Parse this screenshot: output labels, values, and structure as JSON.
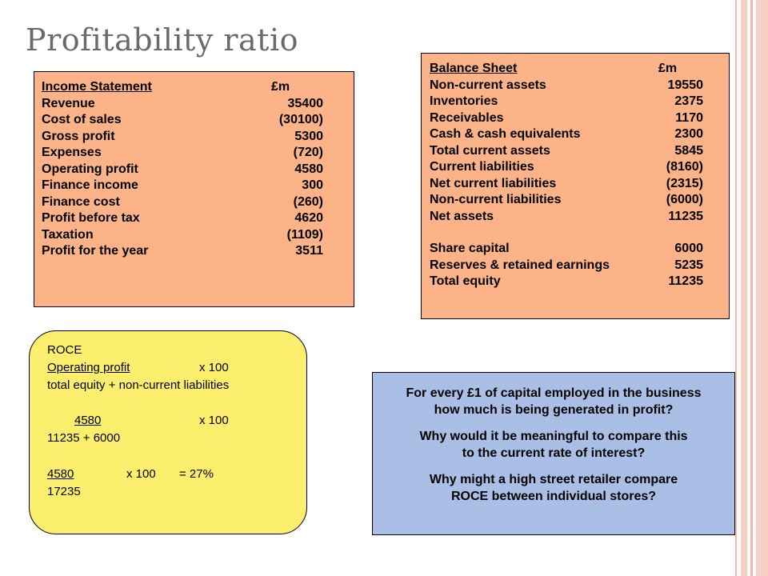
{
  "title": "Profitability ratio",
  "income_statement": {
    "header": {
      "label": "Income Statement",
      "unit": "£m"
    },
    "rows": [
      {
        "label": "Revenue",
        "value": "35400"
      },
      {
        "label": "Cost of sales",
        "value": "(30100)"
      },
      {
        "label": "Gross profit",
        "value": "5300"
      },
      {
        "label": "Expenses",
        "value": "(720)"
      },
      {
        "label": "Operating profit",
        "value": "4580"
      },
      {
        "label": "Finance income",
        "value": "300"
      },
      {
        "label": "Finance cost",
        "value": "(260)"
      },
      {
        "label": "Profit before tax",
        "value": "4620"
      },
      {
        "label": "Taxation",
        "value": "(1109)"
      },
      {
        "label": "Profit for the year",
        "value": "3511"
      }
    ]
  },
  "balance_sheet": {
    "header": {
      "label": "Balance Sheet",
      "unit": "£m"
    },
    "rows": [
      {
        "label": "Non-current assets",
        "value": "19550"
      },
      {
        "label": "Inventories",
        "value": "2375"
      },
      {
        "label": "Receivables",
        "value": "1170"
      },
      {
        "label": "Cash & cash equivalents",
        "value": "2300"
      },
      {
        "label": "Total current assets",
        "value": "5845"
      },
      {
        "label": "Current liabilities",
        "value": "(8160)"
      },
      {
        "label": "Net current liabilities",
        "value": "(2315)"
      },
      {
        "label": "Non-current liabilities",
        "value": "(6000)"
      },
      {
        "label": "Net assets",
        "value": "11235"
      },
      {
        "label": "Share capital",
        "value": "6000"
      },
      {
        "label": "Reserves & retained earnings",
        "value": "5235"
      },
      {
        "label": "Total equity",
        "value": "11235"
      }
    ]
  },
  "roce": {
    "heading": "ROCE",
    "formula_numerator": "Operating profit",
    "formula_multiplier": "x 100",
    "formula_denominator": "total equity + non-current liabilities",
    "step1_numerator": "4580",
    "step1_multiplier": "x 100",
    "step1_denominator": "11235 + 6000",
    "step2_numerator": "4580",
    "step2_multiplier": "x 100",
    "step2_result": "= 27%",
    "step2_denominator": "17235"
  },
  "questions": {
    "q1_line1": "For every £1 of capital employed in the business",
    "q1_line2": "how much is being generated in profit?",
    "q2_line1": "Why would it be meaningful to compare this",
    "q2_line2": "to the current rate of interest?",
    "q3_line1": "Why might a high street retailer compare",
    "q3_line2": "ROCE between individual stores?"
  }
}
